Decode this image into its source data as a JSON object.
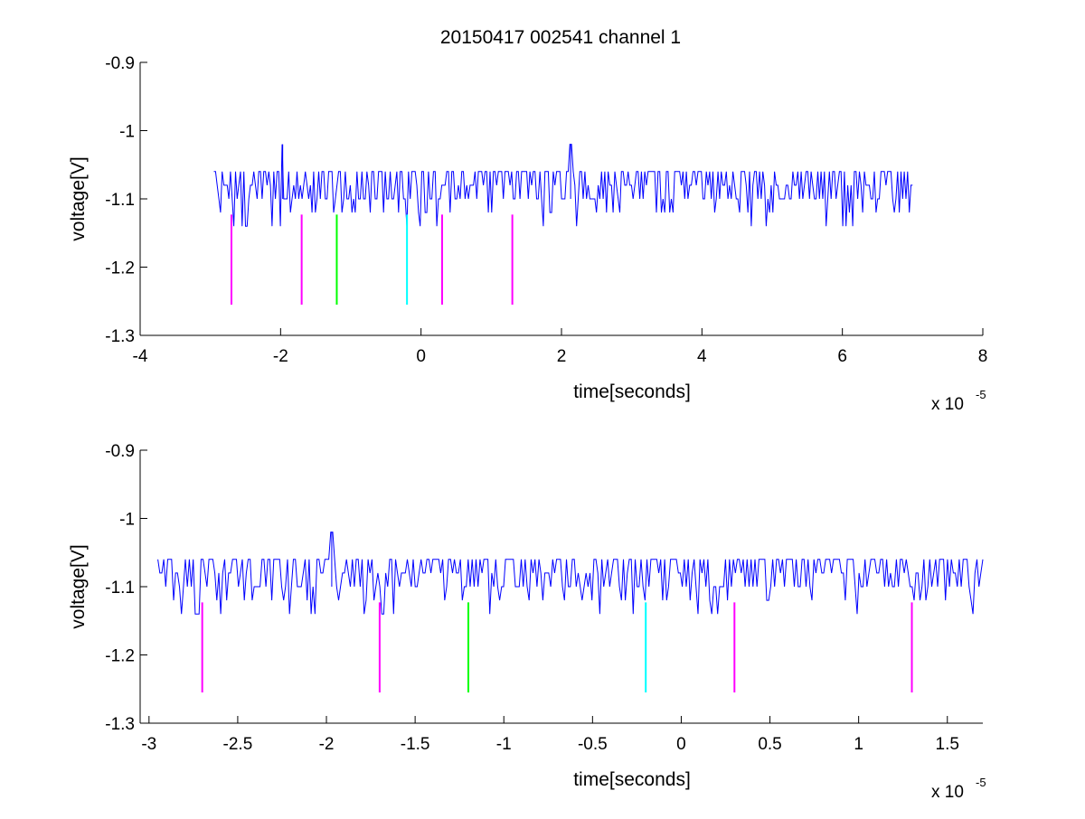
{
  "figure": {
    "title": "20150417 002541 channel 1"
  },
  "colors": {
    "trace": "#0000ff",
    "magenta": "#ff00ff",
    "green": "#00ff00",
    "cyan": "#00ffff",
    "axes": "#000000"
  },
  "chart_data": [
    {
      "type": "line",
      "title": "20150417 002541 channel 1",
      "xlabel": "time[seconds]",
      "ylabel": "voltage[V]",
      "x_multiplier_label": "x 10",
      "x_multiplier_exponent": "-5",
      "xlim": [
        -4,
        8
      ],
      "ylim": [
        -1.3,
        -0.9
      ],
      "x_ticks": [
        -4,
        -2,
        0,
        2,
        4,
        6,
        8
      ],
      "x_tick_labels": [
        "-4",
        "-2",
        "0",
        "2",
        "4",
        "6",
        "8"
      ],
      "y_ticks": [
        -1.3,
        -1.2,
        -1.1,
        -1.0,
        -0.9
      ],
      "y_tick_labels": [
        "-1.3",
        "-1.2",
        "-1.1",
        "-1",
        "-0.9"
      ],
      "grid": false,
      "series": [
        {
          "kind": "noise-trace",
          "color": "trace",
          "x_range": [
            -2.95,
            7.0
          ],
          "baseline": -1.1,
          "levels": [
            -1.14,
            -1.12,
            -1.1,
            -1.08,
            -1.06
          ],
          "spikes": [
            {
              "x": -1.97,
              "y": -1.02
            },
            {
              "x": 2.13,
              "y": -1.02
            }
          ]
        }
      ],
      "markers": [
        {
          "x": -2.7,
          "y_top": -1.123,
          "y_bottom": -1.255,
          "color": "magenta"
        },
        {
          "x": -1.7,
          "y_top": -1.123,
          "y_bottom": -1.255,
          "color": "magenta"
        },
        {
          "x": -1.2,
          "y_top": -1.123,
          "y_bottom": -1.255,
          "color": "green"
        },
        {
          "x": -0.2,
          "y_top": -1.123,
          "y_bottom": -1.255,
          "color": "cyan"
        },
        {
          "x": 0.3,
          "y_top": -1.123,
          "y_bottom": -1.255,
          "color": "magenta"
        },
        {
          "x": 1.3,
          "y_top": -1.123,
          "y_bottom": -1.255,
          "color": "magenta"
        }
      ]
    },
    {
      "type": "line",
      "title": "",
      "xlabel": "time[seconds]",
      "ylabel": "voltage[V]",
      "x_multiplier_label": "x 10",
      "x_multiplier_exponent": "-5",
      "xlim": [
        -3.05,
        1.7
      ],
      "ylim": [
        -1.3,
        -0.9
      ],
      "x_ticks": [
        -3,
        -2.5,
        -2,
        -1.5,
        -1,
        -0.5,
        0,
        0.5,
        1,
        1.5
      ],
      "x_tick_labels": [
        "-3",
        "-2.5",
        "-2",
        "-1.5",
        "-1",
        "-0.5",
        "0",
        "0.5",
        "1",
        "1.5"
      ],
      "y_ticks": [
        -1.3,
        -1.2,
        -1.1,
        -1.0,
        -0.9
      ],
      "y_tick_labels": [
        "-1.3",
        "-1.2",
        "-1.1",
        "-1",
        "-0.9"
      ],
      "grid": false,
      "series": [
        {
          "kind": "noise-trace",
          "color": "trace",
          "x_range": [
            -2.95,
            1.7
          ],
          "baseline": -1.1,
          "levels": [
            -1.14,
            -1.12,
            -1.1,
            -1.08,
            -1.06
          ],
          "spikes": [
            {
              "x": -1.97,
              "y": -1.02
            }
          ]
        }
      ],
      "markers": [
        {
          "x": -2.7,
          "y_top": -1.123,
          "y_bottom": -1.255,
          "color": "magenta"
        },
        {
          "x": -1.7,
          "y_top": -1.123,
          "y_bottom": -1.255,
          "color": "magenta"
        },
        {
          "x": -1.2,
          "y_top": -1.123,
          "y_bottom": -1.255,
          "color": "green"
        },
        {
          "x": -0.2,
          "y_top": -1.123,
          "y_bottom": -1.255,
          "color": "cyan"
        },
        {
          "x": 0.3,
          "y_top": -1.123,
          "y_bottom": -1.255,
          "color": "magenta"
        },
        {
          "x": 1.3,
          "y_top": -1.123,
          "y_bottom": -1.255,
          "color": "magenta"
        }
      ]
    }
  ]
}
